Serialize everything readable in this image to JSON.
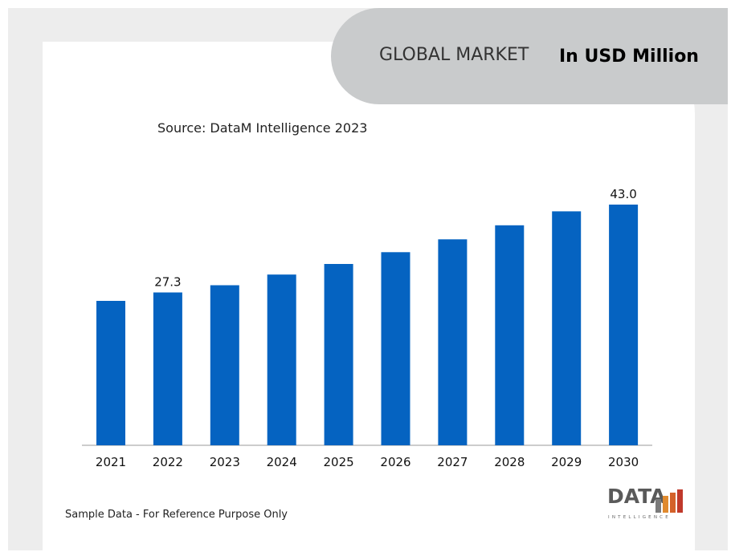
{
  "header": {
    "market_title": "GLOBAL MARKET",
    "unit_label": "In USD Million"
  },
  "source_text": "Source: DataM Intelligence 2023",
  "footnote": "Sample Data - For Reference Purpose Only",
  "logo": {
    "word": "DATA",
    "subtitle": "INTELLIGENCE"
  },
  "colors": {
    "bar": "#0563c1",
    "header_pill": "#c9cbcc",
    "frame": "#ededed"
  },
  "chart_data": {
    "type": "bar",
    "categories": [
      "2021",
      "2022",
      "2023",
      "2024",
      "2025",
      "2026",
      "2027",
      "2028",
      "2029",
      "2030"
    ],
    "values": [
      25.8,
      27.3,
      28.6,
      30.5,
      32.4,
      34.5,
      36.8,
      39.3,
      41.8,
      43.0
    ],
    "data_labels": {
      "2022": "27.3",
      "2030": "43.0"
    },
    "ylim": [
      0,
      43.0
    ],
    "grid": false,
    "xlabel": "",
    "ylabel": ""
  }
}
